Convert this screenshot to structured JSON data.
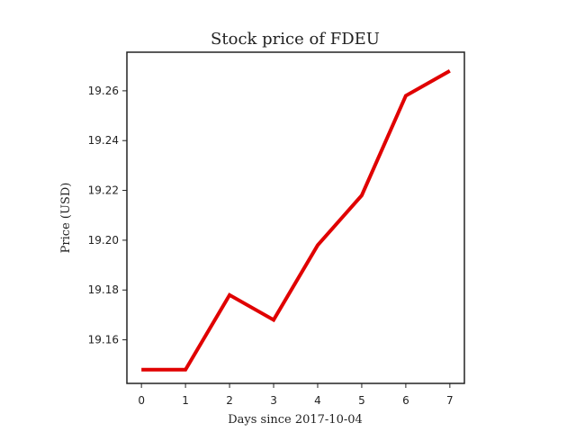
{
  "chart_data": {
    "type": "line",
    "title": "Stock price of FDEU",
    "xlabel": "Days since 2017-10-04",
    "ylabel": "Price (USD)",
    "x": [
      0,
      1,
      2,
      3,
      4,
      5,
      6,
      7
    ],
    "series": [
      {
        "values": [
          19.148,
          19.148,
          19.178,
          19.168,
          19.198,
          19.218,
          19.258,
          19.268
        ],
        "color": "#e00000"
      }
    ],
    "xlim": [
      -0.33,
      7.33
    ],
    "ylim": [
      19.1425,
      19.2755
    ],
    "xticks": [
      0,
      1,
      2,
      3,
      4,
      5,
      6,
      7
    ],
    "yticks": [
      19.16,
      19.18,
      19.2,
      19.22,
      19.24,
      19.26
    ],
    "ytick_labels": [
      "19.16",
      "19.18",
      "19.20",
      "19.22",
      "19.24",
      "19.26"
    ],
    "grid": false,
    "legend": "none"
  }
}
